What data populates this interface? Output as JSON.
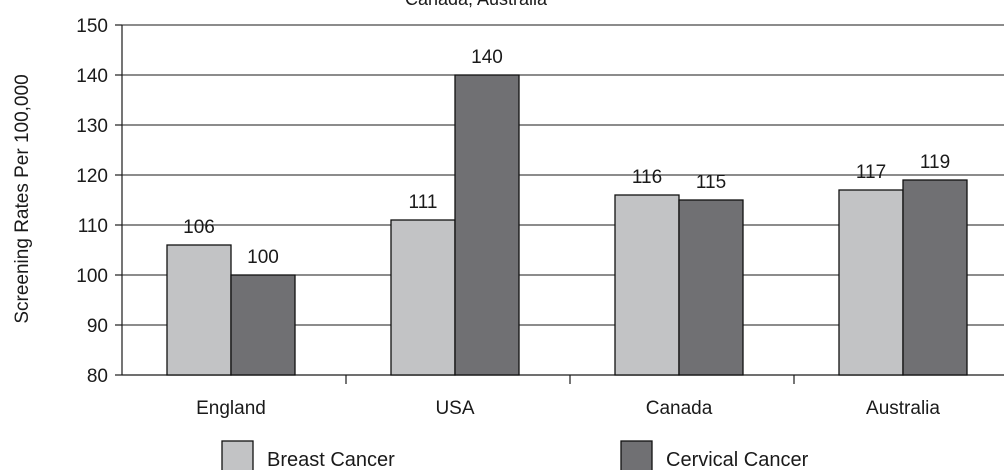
{
  "chart_data": {
    "type": "bar",
    "title": "Canada, Australia",
    "xlabel": "",
    "ylabel": "Screening Rates Per 100,000",
    "categories": [
      "England",
      "USA",
      "Canada",
      "Australia"
    ],
    "series": [
      {
        "name": "Breast Cancer",
        "values": [
          106,
          111,
          116,
          117
        ],
        "color": "#c2c3c5"
      },
      {
        "name": "Cervical Cancer",
        "values": [
          100,
          140,
          115,
          119
        ],
        "color": "#707073"
      }
    ],
    "ylim": [
      80,
      150
    ],
    "yticks": [
      80,
      90,
      100,
      110,
      120,
      130,
      140,
      150
    ],
    "grid": true,
    "legend": "bottom",
    "data_labels": true
  }
}
